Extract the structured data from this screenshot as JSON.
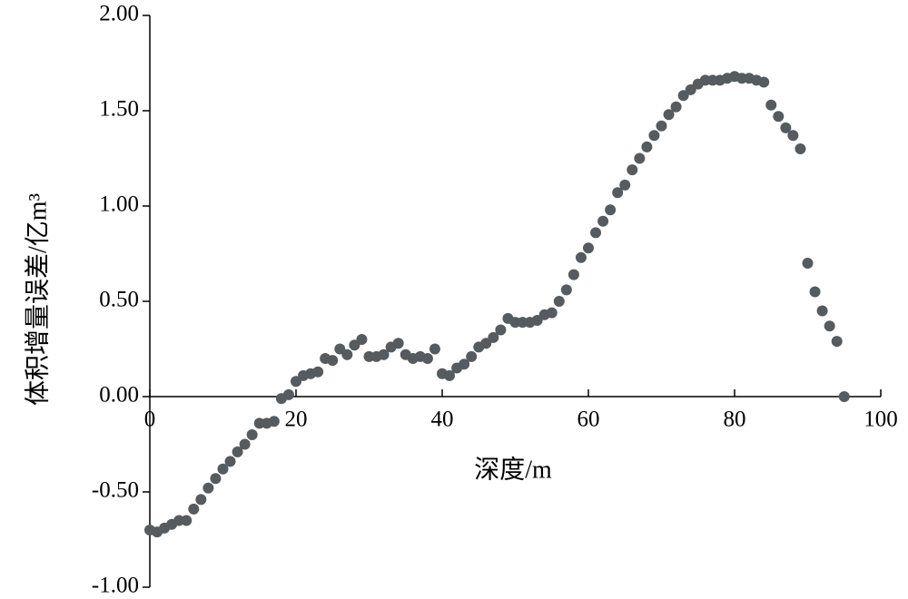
{
  "chart_data": {
    "type": "scatter",
    "x_label": "深度/m",
    "y_label": "体积增量误差/亿m³",
    "color": "#555b5e",
    "x": [
      0,
      1,
      2,
      3,
      4,
      5,
      6,
      7,
      8,
      9,
      10,
      11,
      12,
      13,
      14,
      15,
      16,
      17,
      18,
      19,
      20,
      21,
      22,
      23,
      24,
      25,
      26,
      27,
      28,
      29,
      30,
      31,
      32,
      33,
      34,
      35,
      36,
      37,
      38,
      39,
      40,
      41,
      42,
      43,
      44,
      45,
      46,
      47,
      48,
      49,
      50,
      51,
      52,
      53,
      54,
      55,
      56,
      57,
      58,
      59,
      60,
      61,
      62,
      63,
      64,
      65,
      66,
      67,
      68,
      69,
      70,
      71,
      72,
      73,
      74,
      75,
      76,
      77,
      78,
      79,
      80,
      81,
      82,
      83,
      84,
      85,
      86,
      87,
      88,
      89,
      90,
      91,
      92,
      93,
      94,
      95
    ],
    "values": [
      -0.7,
      -0.71,
      -0.69,
      -0.67,
      -0.65,
      -0.65,
      -0.59,
      -0.54,
      -0.48,
      -0.43,
      -0.38,
      -0.34,
      -0.29,
      -0.25,
      -0.2,
      -0.14,
      -0.14,
      -0.13,
      -0.01,
      0.01,
      0.08,
      0.11,
      0.12,
      0.13,
      0.2,
      0.19,
      0.25,
      0.22,
      0.27,
      0.3,
      0.21,
      0.21,
      0.22,
      0.26,
      0.28,
      0.22,
      0.2,
      0.21,
      0.2,
      0.25,
      0.12,
      0.11,
      0.15,
      0.17,
      0.21,
      0.26,
      0.28,
      0.31,
      0.35,
      0.41,
      0.39,
      0.39,
      0.39,
      0.4,
      0.43,
      0.44,
      0.5,
      0.56,
      0.64,
      0.73,
      0.78,
      0.86,
      0.92,
      0.98,
      1.07,
      1.11,
      1.19,
      1.25,
      1.31,
      1.37,
      1.42,
      1.48,
      1.52,
      1.58,
      1.61,
      1.64,
      1.66,
      1.66,
      1.66,
      1.67,
      1.68,
      1.67,
      1.67,
      1.66,
      1.65,
      1.53,
      1.47,
      1.41,
      1.37,
      1.3,
      0.7,
      0.55,
      0.45,
      0.37,
      0.29,
      0.0
    ],
    "xlim": [
      0,
      100
    ],
    "xticks": [
      0,
      20,
      40,
      60,
      80,
      100
    ],
    "ylim": [
      -1,
      2
    ],
    "yticks": [
      {
        "value": -1,
        "label": "-1.00"
      },
      {
        "value": -0.5,
        "label": "-0.50"
      },
      {
        "value": 0,
        "label": "0.00"
      },
      {
        "value": 0.5,
        "label": "0.50"
      },
      {
        "value": 1,
        "label": "1.00"
      },
      {
        "value": 1.5,
        "label": "1.50"
      },
      {
        "value": 2,
        "label": "2.00"
      }
    ]
  }
}
